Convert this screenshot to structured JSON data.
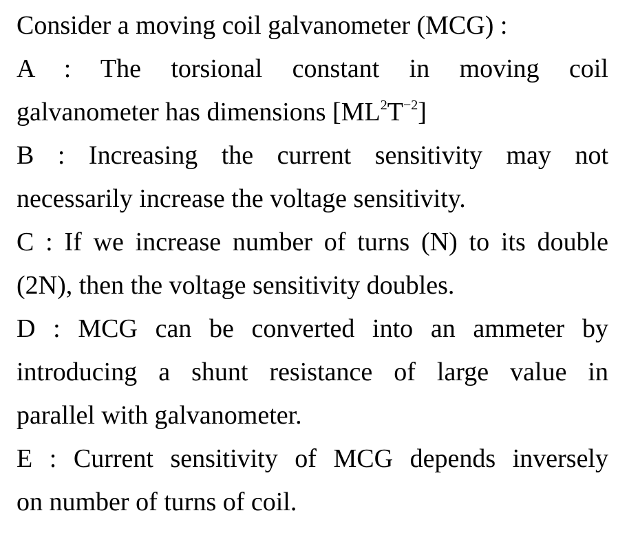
{
  "question": {
    "stem": "Consider a moving coil galvanometer (MCG) :",
    "statements": [
      {
        "label": "A",
        "line1": "A  :  The  torsional  constant  in  moving  coil",
        "line2_prefix": "galvanometer has dimensions [ML",
        "sup1": "2",
        "mid": "T",
        "sup2": "−2",
        "suffix": "]"
      },
      {
        "label": "B",
        "line1": "B  :  Increasing  the  current  sensitivity  may  not",
        "line2": "necessarily increase the voltage sensitivity."
      },
      {
        "label": "C",
        "line1": "C : If we increase number of turns (N) to its double",
        "line2": "(2N), then the voltage sensitivity doubles."
      },
      {
        "label": "D",
        "line1": "D  :  MCG  can  be  converted  into  an  ammeter  by",
        "line2": "introducing  a  shunt  resistance  of  large  value  in",
        "line3": "parallel with galvanometer."
      },
      {
        "label": "E",
        "line1": "E : Current sensitivity of MCG depends inversely",
        "line2": "on number of turns of coil."
      }
    ]
  }
}
